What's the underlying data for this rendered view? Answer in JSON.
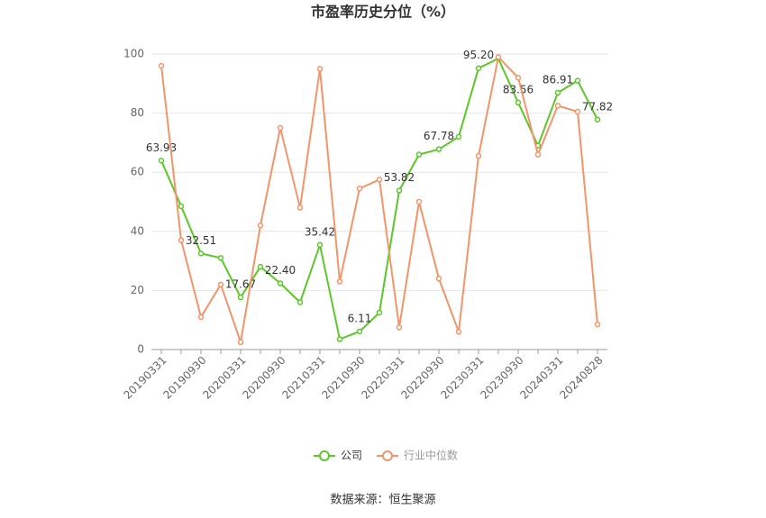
{
  "chart_data": {
    "type": "line",
    "title": "市盈率历史分位（%）",
    "source": "数据来源：恒生聚源",
    "categories": [
      "20190331",
      null,
      "20190930",
      null,
      "20200331",
      null,
      "20200930",
      null,
      "20210331",
      null,
      "20210930",
      null,
      "20220331",
      null,
      "20220930",
      null,
      "20230331",
      null,
      "20230930",
      null,
      "20240331",
      null,
      "20240828"
    ],
    "series": [
      {
        "name": "公司",
        "color": "#5cc72a",
        "values": [
          63.93,
          48.5,
          32.51,
          31,
          17.67,
          28,
          22.4,
          16,
          35.42,
          3.5,
          6.11,
          12.5,
          53.82,
          66,
          67.78,
          72,
          95.2,
          98.5,
          83.56,
          69,
          86.91,
          91,
          77.82
        ],
        "value_labels": [
          "63.93",
          null,
          "32.51",
          null,
          "17.67",
          null,
          "22.40",
          null,
          "35.42",
          null,
          "6.11",
          null,
          "53.82",
          null,
          "67.78",
          null,
          "95.20",
          null,
          "83.56",
          null,
          "86.91",
          null,
          "77.82"
        ]
      },
      {
        "name": "行业中位数",
        "color": "#f3956a",
        "values": [
          96,
          37,
          11,
          22,
          2.5,
          42,
          75,
          48,
          95,
          23,
          54.5,
          57.5,
          7.5,
          50,
          24,
          6,
          65.5,
          99,
          92,
          66,
          82.5,
          80.5,
          8.5
        ]
      }
    ],
    "ylim": [
      0,
      100
    ],
    "yticks": [
      0,
      20,
      40,
      60,
      80,
      100
    ],
    "grid": true,
    "legend": "bottom"
  }
}
